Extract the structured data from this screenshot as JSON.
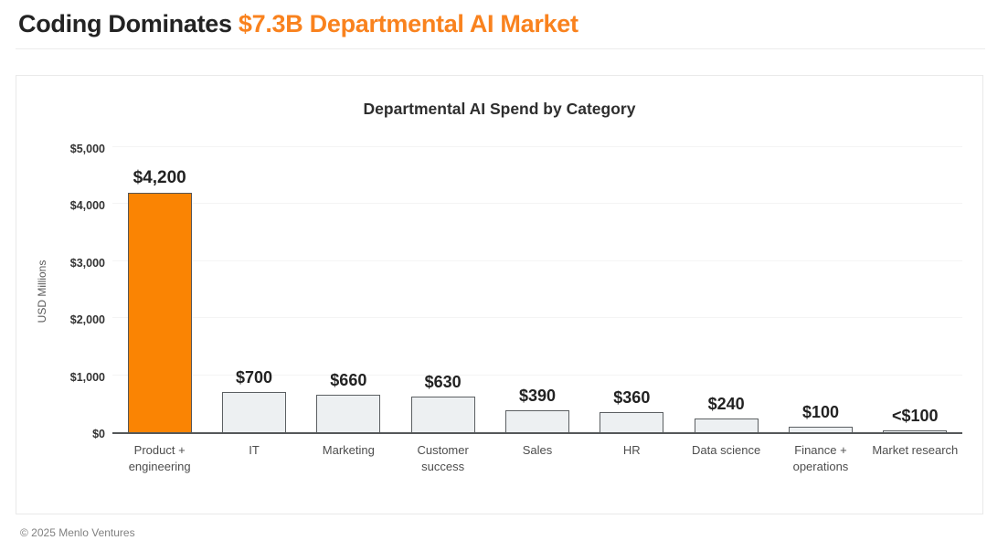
{
  "header": {
    "title_dark": "Coding Dominates",
    "title_orange": "$7.3B Departmental AI Market"
  },
  "chart_data": {
    "type": "bar",
    "title": "Departmental AI Spend by Category",
    "xlabel": "",
    "ylabel": "USD Millions",
    "ylim": [
      0,
      5000
    ],
    "y_ticks": [
      {
        "label": "$0",
        "value": 0
      },
      {
        "label": "$1,000",
        "value": 1000
      },
      {
        "label": "$2,000",
        "value": 2000
      },
      {
        "label": "$3,000",
        "value": 3000
      },
      {
        "label": "$4,000",
        "value": 4000
      },
      {
        "label": "$5,000",
        "value": 5000
      }
    ],
    "grid": "horizontal",
    "legend": "none",
    "categories": [
      "Product + engineering",
      "IT",
      "Marketing",
      "Customer success",
      "Sales",
      "HR",
      "Data science",
      "Finance + operations",
      "Market research"
    ],
    "values": [
      4200,
      700,
      660,
      630,
      390,
      360,
      240,
      100,
      30
    ],
    "value_labels": [
      "$4,200",
      "$700",
      "$660",
      "$630",
      "$390",
      "$360",
      "$240",
      "$100",
      "<$100"
    ],
    "highlight_index": 0,
    "colors": {
      "highlight_bar": "#FA8403",
      "bar_fill": "#EDF0F2",
      "bar_border": "#5B5F62",
      "accent_text": "#F9821E",
      "grid_line": "#F4F4F4",
      "axis_line": "#55585A"
    }
  },
  "footer": {
    "copyright": "© 2025 Menlo Ventures"
  }
}
